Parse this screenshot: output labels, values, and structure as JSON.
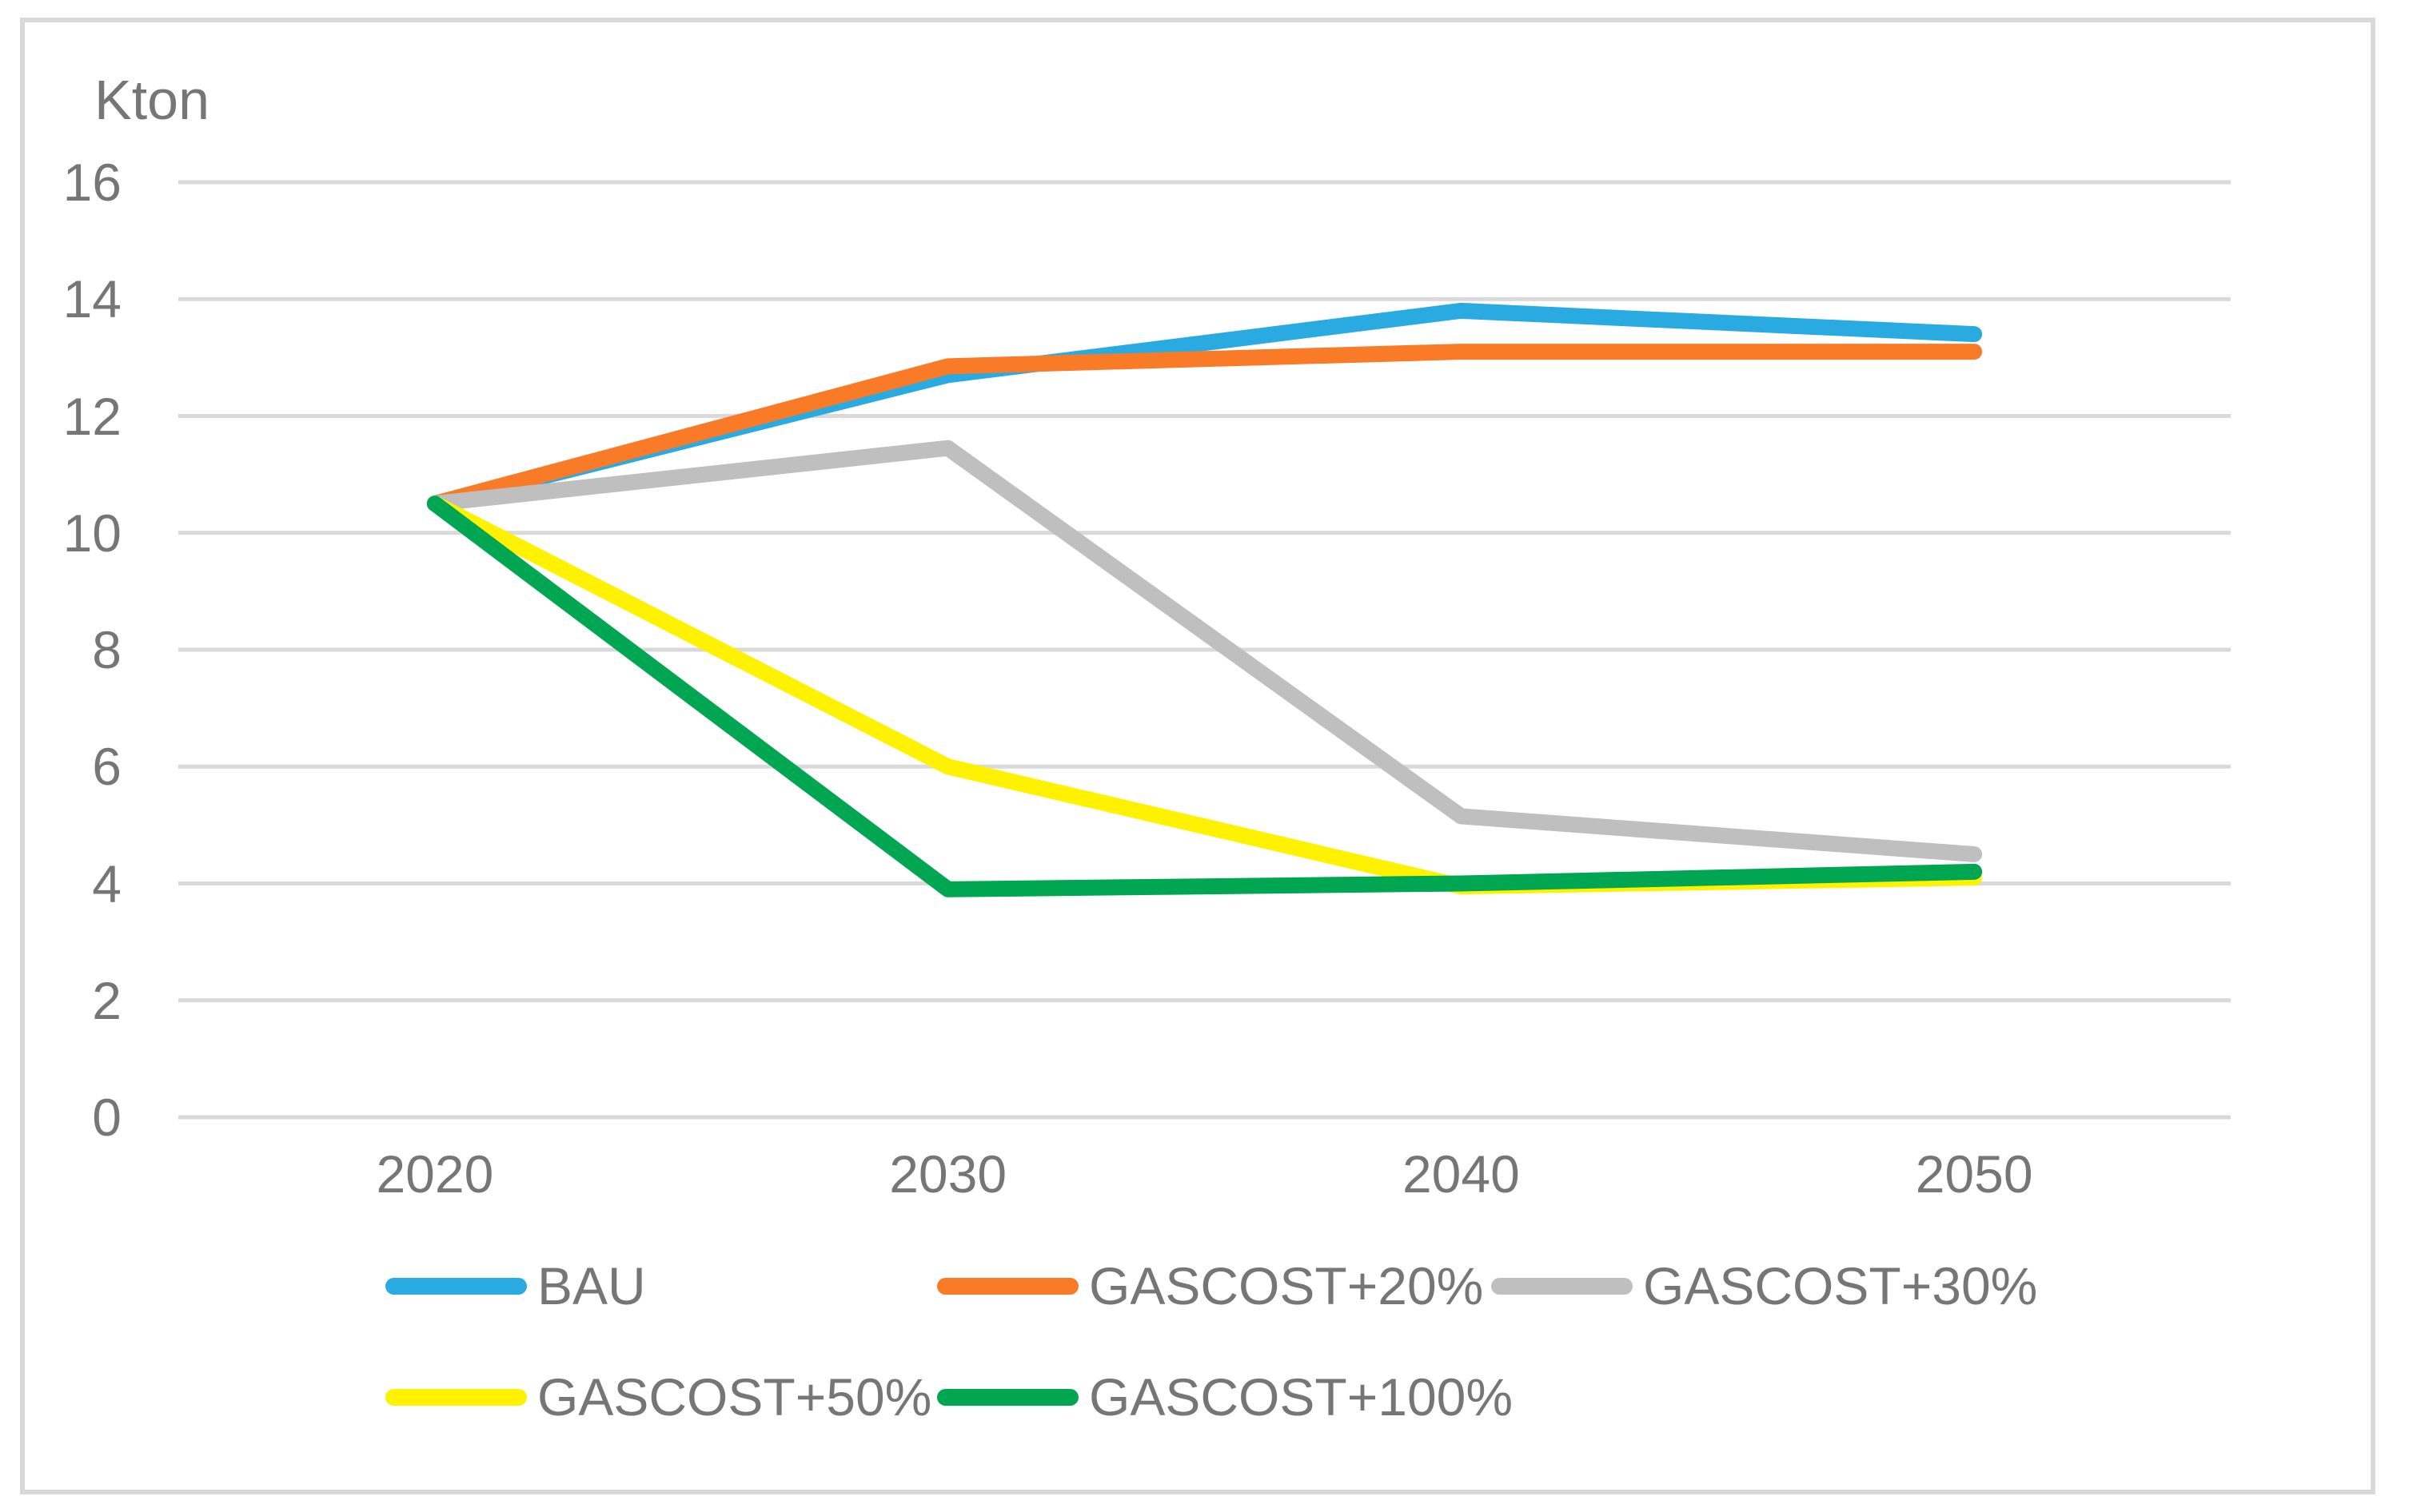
{
  "chart_data": {
    "type": "line",
    "title": "",
    "xlabel": "",
    "ylabel": "Kton",
    "unit_label": "Kton",
    "categories": [
      "2020",
      "2030",
      "2040",
      "2050"
    ],
    "ylim": [
      0,
      16
    ],
    "y_ticks": [
      0,
      2,
      4,
      6,
      8,
      10,
      12,
      14,
      16
    ],
    "grid": "horizontal",
    "legend_position": "bottom",
    "colors": {
      "gridline": "#d9d9d9",
      "text": "#767676",
      "frame_border": "#d9d9d9"
    },
    "series": [
      {
        "name": "BAU",
        "color": "#29abe2",
        "values": [
          10.5,
          12.7,
          13.8,
          13.4
        ]
      },
      {
        "name": "GASCOST+20%",
        "color": "#f97b28",
        "values": [
          10.5,
          12.85,
          13.1,
          13.1
        ]
      },
      {
        "name": "GASCOST+30%",
        "color": "#bfbfbf",
        "values": [
          10.5,
          11.45,
          5.15,
          4.5
        ]
      },
      {
        "name": "GASCOST+50%",
        "color": "#fef200",
        "values": [
          10.5,
          6.0,
          3.95,
          4.1
        ]
      },
      {
        "name": "GASCOST+100%",
        "color": "#00a651",
        "values": [
          10.5,
          3.9,
          4.0,
          4.2
        ]
      }
    ]
  }
}
